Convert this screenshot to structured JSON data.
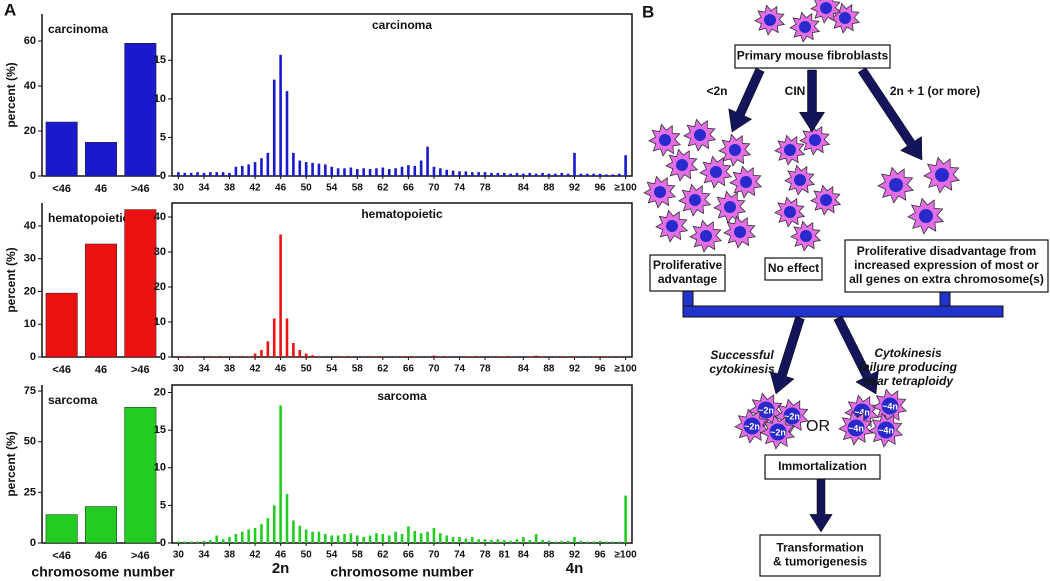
{
  "panel_labels": [
    "A",
    "B"
  ],
  "chart_data": [
    {
      "type": "bar",
      "title": "carcinoma",
      "ylabel": "percent (%)",
      "categories": [
        "<46",
        "46",
        ">46"
      ],
      "values": [
        24,
        15,
        59
      ],
      "color": "#1a1acc",
      "ylim": [
        0,
        72
      ],
      "yticks": [
        0,
        20,
        40,
        60
      ]
    },
    {
      "type": "bar",
      "title": "carcinoma",
      "color": "#1a1acc",
      "xlim": [
        29,
        101
      ],
      "ylim": [
        0,
        21
      ],
      "yticks": [
        0,
        5,
        10,
        15
      ],
      "xticks": [
        30,
        34,
        38,
        42,
        46,
        50,
        54,
        58,
        62,
        66,
        70,
        74,
        78,
        84,
        88,
        92,
        96,
        {
          "value": 100,
          "label": "≥100"
        }
      ],
      "x": [
        30,
        31,
        32,
        33,
        34,
        35,
        36,
        37,
        38,
        39,
        40,
        41,
        42,
        43,
        44,
        45,
        46,
        47,
        48,
        49,
        50,
        51,
        52,
        53,
        54,
        55,
        56,
        57,
        58,
        59,
        60,
        61,
        62,
        63,
        64,
        65,
        66,
        67,
        68,
        69,
        70,
        71,
        72,
        73,
        74,
        75,
        76,
        77,
        78,
        79,
        80,
        81,
        82,
        83,
        84,
        85,
        86,
        87,
        88,
        89,
        90,
        91,
        92,
        93,
        94,
        95,
        96,
        97,
        98,
        99,
        100
      ],
      "values": [
        0.5,
        0.4,
        0.4,
        0.5,
        0.4,
        0.5,
        0.5,
        0.5,
        0.4,
        1.2,
        1.3,
        1.5,
        1.8,
        2.3,
        3,
        12.5,
        15.7,
        11,
        3,
        2,
        1.8,
        1.7,
        1.6,
        1.5,
        1.2,
        1,
        1,
        1.1,
        0.9,
        1,
        0.9,
        1,
        1.1,
        0.9,
        1,
        1.2,
        1.4,
        1.3,
        2,
        3.8,
        1.2,
        1,
        0.8,
        0.7,
        0.6,
        0.6,
        0.5,
        0.5,
        0.5,
        0.4,
        0.4,
        0.4,
        0.3,
        0.4,
        0.3,
        0.4,
        0.3,
        0.4,
        0.3,
        0.3,
        0.4,
        0.3,
        3,
        0.3,
        0.3,
        0.3,
        0.3,
        0.2,
        0.2,
        0.3,
        2.7
      ]
    },
    {
      "type": "bar",
      "title": "hematopoietic",
      "ylabel": "percent (%)",
      "categories": [
        "<46",
        "46",
        ">46"
      ],
      "values": [
        19.5,
        34.5,
        45
      ],
      "color": "#ee1111",
      "ylim": [
        0,
        47
      ],
      "yticks": [
        0,
        10,
        20,
        30,
        40
      ]
    },
    {
      "type": "bar",
      "title": "hematopoietic",
      "color": "#ee1111",
      "xlim": [
        29,
        101
      ],
      "ylim": [
        0,
        44
      ],
      "yticks": [
        0,
        10,
        20,
        30,
        40
      ],
      "xticks": [
        30,
        34,
        38,
        42,
        46,
        50,
        54,
        58,
        62,
        66,
        70,
        74,
        78,
        84,
        88,
        92,
        96,
        {
          "value": 100,
          "label": "≥100"
        }
      ],
      "x": [
        30,
        31,
        32,
        33,
        34,
        35,
        36,
        37,
        38,
        39,
        40,
        41,
        42,
        43,
        44,
        45,
        46,
        47,
        48,
        49,
        50,
        51,
        52,
        53,
        54,
        55,
        56,
        57,
        58,
        59,
        60,
        61,
        62,
        63,
        64,
        65,
        66,
        67,
        68,
        69,
        70,
        71,
        72,
        73,
        74,
        75,
        76,
        77,
        78,
        79,
        80,
        81,
        82,
        83,
        84,
        85,
        86,
        87,
        88,
        89,
        90,
        91,
        92,
        93,
        94,
        95,
        96,
        97,
        98,
        99,
        100
      ],
      "values": [
        0.2,
        0.2,
        0.2,
        0.2,
        0.2,
        0.2,
        0.2,
        0.2,
        0.2,
        0.2,
        0.2,
        0.2,
        1,
        2,
        4.5,
        11,
        35,
        11,
        4,
        2,
        1,
        0.5,
        0.2,
        0.2,
        0.2,
        0.2,
        0.2,
        0.2,
        0.2,
        0.2,
        0.2,
        0.2,
        0.2,
        0.2,
        0.2,
        0.2,
        0.2,
        0.2,
        0.2,
        0.2,
        0.4,
        0.2,
        0.2,
        0.2,
        0.2,
        0.2,
        0.2,
        0.2,
        0.2,
        0.2,
        0.2,
        0.2,
        0.2,
        0.2,
        0.2,
        0.2,
        0.4,
        0.2,
        0.2,
        0.2,
        0.2,
        0.2,
        0.2,
        0.2,
        0.2,
        0.2,
        0.2,
        0.2,
        0.2,
        0.2,
        0.2
      ]
    },
    {
      "type": "bar",
      "title": "sarcoma",
      "ylabel": "percent (%)",
      "xlabel": "chromosome number",
      "categories": [
        "<46",
        "46",
        ">46"
      ],
      "values": [
        14,
        18,
        67
      ],
      "color": "#22cc22",
      "ylim": [
        0,
        78
      ],
      "yticks": [
        0,
        25,
        50,
        75
      ]
    },
    {
      "type": "bar",
      "title": "sarcoma",
      "xlabel": "chromosome number",
      "color": "#22cc22",
      "xlim": [
        29,
        101
      ],
      "ylim": [
        0,
        21
      ],
      "yticks": [
        0,
        5,
        10,
        15,
        20
      ],
      "xticks": [
        30,
        34,
        38,
        42,
        46,
        50,
        54,
        58,
        62,
        66,
        70,
        74,
        78,
        81,
        84,
        88,
        92,
        96,
        {
          "value": 100,
          "label": "≥100"
        }
      ],
      "annotations": [
        {
          "text": "2n",
          "x": 46
        },
        {
          "text": "4n",
          "x": 92
        }
      ],
      "x": [
        30,
        31,
        32,
        33,
        34,
        35,
        36,
        37,
        38,
        39,
        40,
        41,
        42,
        43,
        44,
        45,
        46,
        47,
        48,
        49,
        50,
        51,
        52,
        53,
        54,
        55,
        56,
        57,
        58,
        59,
        60,
        61,
        62,
        63,
        64,
        65,
        66,
        67,
        68,
        69,
        70,
        71,
        72,
        73,
        74,
        75,
        76,
        77,
        78,
        79,
        80,
        81,
        82,
        83,
        84,
        85,
        86,
        87,
        88,
        89,
        90,
        91,
        92,
        93,
        94,
        95,
        96,
        97,
        98,
        99,
        100
      ],
      "values": [
        0.2,
        0.2,
        0.2,
        0.2,
        0.3,
        0.4,
        1,
        0.5,
        0.8,
        1.2,
        1.5,
        1.8,
        2,
        2.5,
        3.3,
        5,
        18.3,
        6.5,
        3,
        2.3,
        1.8,
        1.5,
        1.5,
        1.2,
        1,
        1,
        1.2,
        1.3,
        1,
        0.8,
        1,
        1.3,
        1.2,
        1,
        1.5,
        1.2,
        2.2,
        1.6,
        1.3,
        1.5,
        2,
        1.3,
        1,
        0.8,
        0.8,
        0.6,
        0.8,
        0.5,
        0.5,
        0.4,
        0.5,
        0.4,
        0.3,
        0.5,
        0.8,
        0.4,
        1.2,
        0.4,
        0.3,
        0.2,
        0.3,
        0.3,
        0.8,
        0.3,
        0.2,
        0.2,
        0.3,
        0.2,
        0.2,
        0.2,
        6.3
      ]
    }
  ],
  "diagram": {
    "nodes": [
      {
        "text": [
          "Primary mouse fibroblasts"
        ]
      },
      {
        "text": [
          "Proliferative",
          "advantage"
        ]
      },
      {
        "text": [
          "No effect"
        ]
      },
      {
        "text": [
          "Proliferative disadvantage from",
          "increased expression of most or",
          "all genes on extra chromosome(s)"
        ]
      },
      {
        "text": [
          "Immortalization"
        ]
      },
      {
        "text": [
          "Transformation",
          "& tumorigenesis"
        ]
      }
    ],
    "edge_labels": [
      {
        "text": [
          "<2n"
        ]
      },
      {
        "text": [
          "CIN"
        ]
      },
      {
        "text": [
          "2n + 1 (or more)"
        ]
      },
      {
        "text": [
          "Successful",
          "cytokinesis"
        ]
      },
      {
        "text": [
          "Cytokinesis",
          "failure producing",
          "near tetraploidy"
        ]
      },
      {
        "text": [
          "OR"
        ]
      }
    ],
    "cell_labels": [
      "~2n",
      "~2n",
      "~2n",
      "~2n",
      "~4n",
      "~4n",
      "~4n",
      "~4n"
    ]
  }
}
